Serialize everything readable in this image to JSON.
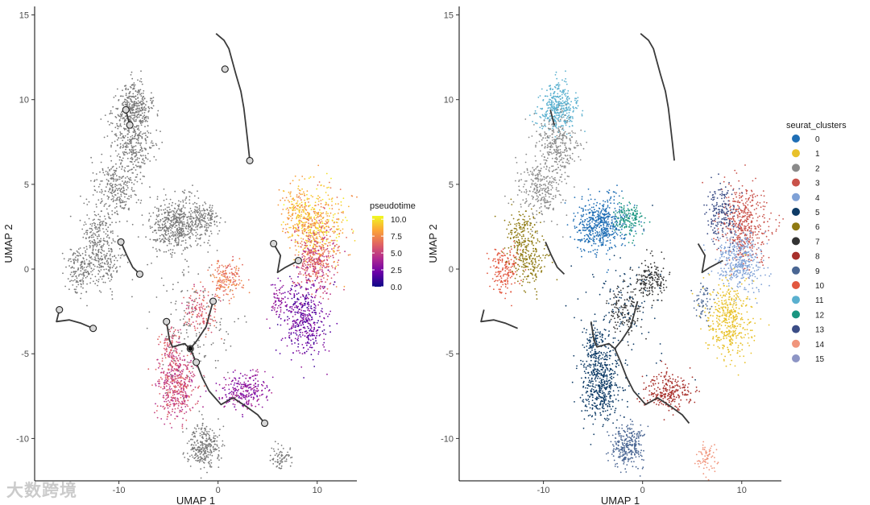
{
  "chart_data": [
    {
      "type": "scatter",
      "panel": "left",
      "xlabel": "UMAP 1",
      "ylabel": "UMAP 2",
      "xlim": [
        -18.5,
        14
      ],
      "ylim": [
        -12.5,
        15.5
      ],
      "xticks": [
        -10,
        0,
        10
      ],
      "yticks": [
        -10,
        -5,
        0,
        5,
        10,
        15
      ],
      "grid": false,
      "color_by": "pseudotime",
      "colorbar": {
        "title": "pseudotime",
        "ticks": [
          "10.0",
          "7.5",
          "5.0",
          "2.5",
          "0.0"
        ],
        "range": [
          0,
          10.5
        ],
        "colors": [
          "#0d0887",
          "#6a00a8",
          "#b12a90",
          "#e16462",
          "#fca636",
          "#f0f921"
        ]
      },
      "trajectory_nodes": [
        [
          0.7,
          11.8
        ],
        [
          3.2,
          6.4
        ],
        [
          -9.3,
          9.4
        ],
        [
          -8.9,
          8.5
        ],
        [
          -9.8,
          1.6
        ],
        [
          -7.9,
          -0.3
        ],
        [
          -16,
          -2.4
        ],
        [
          -12.6,
          -3.5
        ],
        [
          5.6,
          1.5
        ],
        [
          8.1,
          0.5
        ],
        [
          -5.2,
          -3.1
        ],
        [
          -0.5,
          -1.9
        ],
        [
          -2.8,
          -4.7
        ],
        [
          -2.2,
          -5.5
        ],
        [
          4.7,
          -9.1
        ]
      ]
    },
    {
      "type": "scatter",
      "panel": "right",
      "xlabel": "UMAP 1",
      "ylabel": "UMAP 2",
      "xlim": [
        -18.5,
        14
      ],
      "ylim": [
        -12.5,
        15.5
      ],
      "xticks": [
        -10,
        0,
        10
      ],
      "yticks": [
        -10,
        -5,
        0,
        5,
        10,
        15
      ],
      "grid": false,
      "color_by": "seurat_clusters",
      "legend": {
        "title": "seurat_clusters",
        "placement": "right",
        "entries": [
          {
            "label": "0",
            "color": "#1f6eb5"
          },
          {
            "label": "1",
            "color": "#e8c12a"
          },
          {
            "label": "2",
            "color": "#8a8a8a"
          },
          {
            "label": "3",
            "color": "#c9524a"
          },
          {
            "label": "4",
            "color": "#7fa1d6"
          },
          {
            "label": "5",
            "color": "#0e3b66"
          },
          {
            "label": "6",
            "color": "#8f7a12"
          },
          {
            "label": "7",
            "color": "#333333"
          },
          {
            "label": "8",
            "color": "#a8302b"
          },
          {
            "label": "9",
            "color": "#4a6693"
          },
          {
            "label": "10",
            "color": "#e2573f"
          },
          {
            "label": "11",
            "color": "#5ab0cf"
          },
          {
            "label": "12",
            "color": "#1a9580"
          },
          {
            "label": "13",
            "color": "#3b4d86"
          },
          {
            "label": "14",
            "color": "#f0957c"
          },
          {
            "label": "15",
            "color": "#8d95c5"
          }
        ]
      }
    }
  ],
  "watermark": "大数跨境"
}
